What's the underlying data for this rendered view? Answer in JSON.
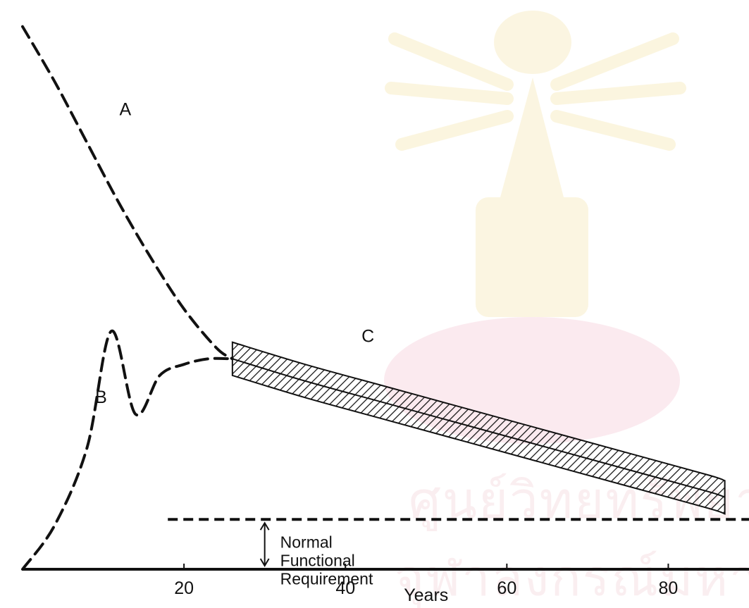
{
  "chart_data": {
    "type": "line",
    "xlabel": "Years",
    "ylabel": "",
    "xlim": [
      0,
      90
    ],
    "ylim": [
      0,
      100
    ],
    "x_ticks": [
      20,
      40,
      60,
      80
    ],
    "series": [
      {
        "name": "A",
        "style": "dashed",
        "x": [
          0,
          4,
          8,
          12,
          16,
          20,
          24,
          26
        ],
        "y": [
          98,
          88,
          77,
          66,
          56,
          47,
          40,
          38
        ]
      },
      {
        "name": "B",
        "style": "dashed",
        "x": [
          0,
          4,
          8,
          11,
          14,
          17,
          20,
          23,
          26
        ],
        "y": [
          0,
          8,
          22,
          43,
          28,
          35,
          37,
          38,
          38
        ]
      },
      {
        "name": "C",
        "style": "hatched band",
        "x": [
          26,
          35,
          45,
          55,
          65,
          75,
          85,
          87
        ],
        "y": [
          38,
          34,
          30,
          26,
          22,
          18,
          14,
          13
        ],
        "band_spread": 3
      }
    ],
    "reference_lines": [
      {
        "y": 9,
        "x_start": 18,
        "x_end": 90,
        "style": "dashed"
      }
    ],
    "annotations": [
      {
        "text_lines": [
          "Normal",
          "Functional",
          "Requirement"
        ],
        "x": 30,
        "y_from": 0,
        "y_to": 9
      }
    ],
    "colors": {
      "ink": "#111111",
      "background": "#ffffff",
      "watermark": "#f1d27a"
    }
  }
}
